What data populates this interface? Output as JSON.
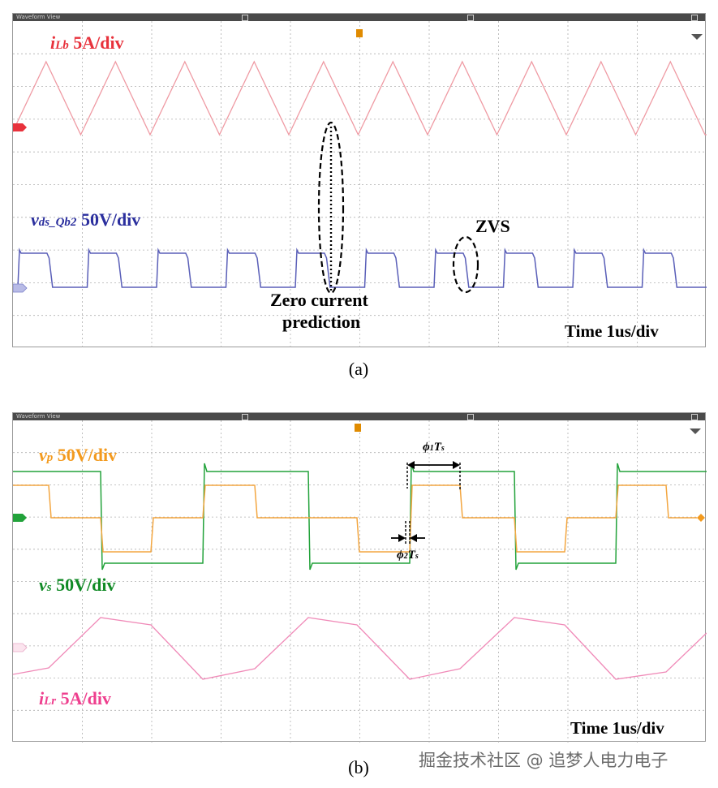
{
  "panels": [
    {
      "id": "a",
      "window_title": "Waveform View",
      "caption": "(a)",
      "time_scale": "Time 1us/div",
      "traces": [
        {
          "var": "i",
          "sub": "Lb",
          "scale": "5A/div",
          "color": "#e8323c",
          "trace_color": "#ef9aa3",
          "marker": "C1"
        },
        {
          "var": "v",
          "sub": "ds_Qb2",
          "scale": "50V/div",
          "color": "#2b2f9e",
          "trace_color": "#5a5fb8",
          "marker": "C4"
        }
      ],
      "annotations": [
        "Zero current",
        "prediction",
        "ZVS"
      ]
    },
    {
      "id": "b",
      "window_title": "Waveform View",
      "caption": "(b)",
      "time_scale": "Time 1us/div",
      "traces": [
        {
          "var": "v",
          "sub": "p",
          "scale": "50V/div",
          "color": "#f39a1e",
          "trace_color": "#f3a640",
          "marker": "C2"
        },
        {
          "var": "v",
          "sub": "s",
          "scale": "50V/div",
          "color": "#118a26",
          "trace_color": "#22a23a",
          "marker": "C3"
        },
        {
          "var": "i",
          "sub": "Lr",
          "scale": "5A/div",
          "color": "#ee3f8e",
          "trace_color": "#f08ab8",
          "marker": "C7"
        }
      ],
      "annotations": {
        "phi1": {
          "sym": "ϕ",
          "idx": "1",
          "T": "T",
          "s": "s"
        },
        "phi2": {
          "sym": "ϕ",
          "idx": "2",
          "T": "T",
          "s": "s"
        }
      }
    }
  ],
  "watermark": "掘金技术社区 @ 追梦人电力电子",
  "chart_data": [
    {
      "type": "line",
      "title": "",
      "x_unit": "us",
      "divisions_x": 10,
      "divisions_y": 8,
      "series": [
        {
          "name": "iLb",
          "scale": "5A/div",
          "waveform": "triangle",
          "period_us": 1.0,
          "amplitude_div": 2.2,
          "center_div": 2.9
        },
        {
          "name": "vds_Qb2",
          "scale": "50V/div",
          "waveform": "square",
          "period_us": 1.0,
          "duty": 0.45,
          "high_div": 1.0,
          "low_div": 0.0,
          "offset_div": -0.2
        }
      ]
    },
    {
      "type": "line",
      "title": "",
      "x_unit": "us",
      "divisions_x": 10,
      "divisions_y": 8,
      "series": [
        {
          "name": "vp",
          "scale": "50V/div",
          "waveform": "three-level",
          "period_us": 3.0,
          "level_div": 1.0
        },
        {
          "name": "vs",
          "scale": "50V/div",
          "waveform": "square",
          "period_us": 3.0,
          "level_div": 1.4
        },
        {
          "name": "iLr",
          "scale": "5A/div",
          "waveform": "trapezoidal",
          "period_us": 3.0,
          "peak_div": 1.5
        }
      ]
    }
  ]
}
